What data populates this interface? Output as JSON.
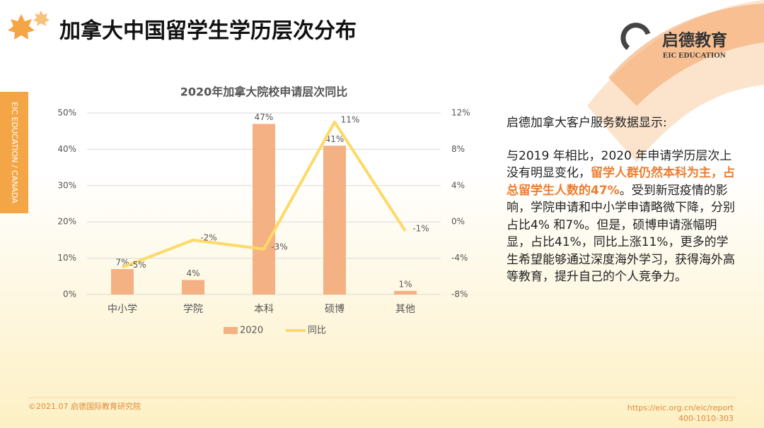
{
  "header": {
    "title": "加拿大中国留学生学历层次分布",
    "side_tab": "EIC EDUCATION / CANADA",
    "logo_cn": "启德教育",
    "logo_en": "EIC EDUCATION"
  },
  "chart_data": {
    "type": "bar_line",
    "title": "2020年加拿大院校申请层次同比",
    "categories": [
      "中小学",
      "学院",
      "本科",
      "硕博",
      "其他"
    ],
    "series": [
      {
        "name": "2020",
        "type": "bar",
        "color": "#f4b183",
        "values": [
          7,
          4,
          47,
          41,
          1
        ],
        "value_labels": [
          "7%",
          "4%",
          "47%",
          "41%",
          "1%"
        ]
      },
      {
        "name": "同比",
        "type": "line",
        "axis": "y2",
        "color": "#ffd966",
        "values": [
          -5,
          -2,
          -3,
          11,
          -1
        ],
        "value_labels": [
          "-5%",
          "-2%",
          "-3%",
          "11%",
          "-1%"
        ]
      }
    ],
    "ylim": [
      0,
      50
    ],
    "yticks": [
      {
        "value": 0,
        "label": "0%"
      },
      {
        "value": 10,
        "label": "10%"
      },
      {
        "value": 20,
        "label": "20%"
      },
      {
        "value": 30,
        "label": "30%"
      },
      {
        "value": 40,
        "label": "40%"
      },
      {
        "value": 50,
        "label": "50%"
      }
    ],
    "y2lim": [
      -8,
      12
    ],
    "y2ticks": [
      {
        "value": -8,
        "label": "-8%"
      },
      {
        "value": -4,
        "label": "-4%"
      },
      {
        "value": 0,
        "label": "0%"
      },
      {
        "value": 4,
        "label": "4%"
      },
      {
        "value": 8,
        "label": "8%"
      },
      {
        "value": 12,
        "label": "12%"
      }
    ],
    "grid": true,
    "legend": "bottom"
  },
  "text": {
    "intro": "启德加拿大客户服务数据显示:",
    "body": [
      "与2019 年相比，2020 年申请学历层次上没有明显变化，",
      "留学人群仍然本科为主，占总留学生人数的47%",
      "。受到新冠疫情的影响，学院申请和中小学申请略微下降，分别占比4% 和7%。但是，硕博申请涨幅明显，占比41%，同比上涨11%，更多的学生希望能够通过深度海外学习，获得海外高等教育，提升自己的个人竞争力。"
    ]
  },
  "footer": {
    "left": "©2021.07 启德国际教育研究院",
    "url": "https://eic.org.cn/eic/report",
    "phone": "400-1010-303"
  }
}
